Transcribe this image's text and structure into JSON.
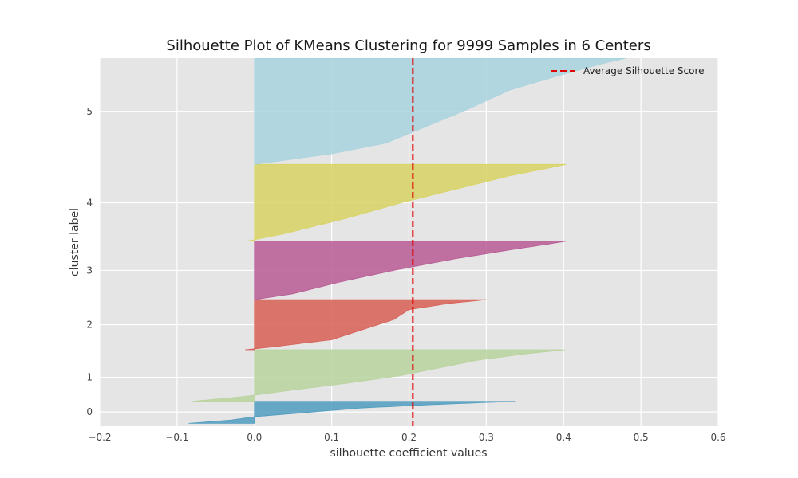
{
  "chart_data": {
    "type": "area",
    "title": "Silhouette Plot of KMeans Clustering for 9999 Samples in 6 Centers",
    "xlabel": "silhouette coefficient values",
    "ylabel": "cluster label",
    "xlim": [
      -0.2,
      0.6
    ],
    "ylim": [
      -70,
      10135
    ],
    "xticks": [
      -0.2,
      -0.1,
      0.0,
      0.1,
      0.2,
      0.3,
      0.4,
      0.5,
      0.6
    ],
    "xtick_labels": [
      "−0.2",
      "−0.1",
      "0.0",
      "0.1",
      "0.2",
      "0.3",
      "0.4",
      "0.5",
      "0.6"
    ],
    "grid": true,
    "legend_position": "top-right",
    "average_silhouette_score": 0.205,
    "average_label": "Average Silhouette Score",
    "average_color": "#e00000",
    "clusters": [
      {
        "label": "0",
        "color": "#4f9cbf",
        "y_start": 10,
        "y_end": 620,
        "label_y": 325,
        "profile": [
          [
            0,
            -0.085
          ],
          [
            0.15,
            -0.03
          ],
          [
            0.3,
            0.0
          ],
          [
            0.5,
            0.07
          ],
          [
            0.7,
            0.14
          ],
          [
            0.85,
            0.23
          ],
          [
            0.95,
            0.3
          ],
          [
            1,
            0.337
          ]
        ]
      },
      {
        "label": "1",
        "color": "#b9d39e",
        "y_start": 620,
        "y_end": 2050,
        "label_y": 1285,
        "profile": [
          [
            0,
            -0.08
          ],
          [
            0.1,
            -0.01
          ],
          [
            0.2,
            0.04
          ],
          [
            0.35,
            0.12
          ],
          [
            0.5,
            0.19
          ],
          [
            0.65,
            0.24
          ],
          [
            0.8,
            0.29
          ],
          [
            0.92,
            0.35
          ],
          [
            1,
            0.402
          ]
        ]
      },
      {
        "label": "2",
        "color": "#d85f55",
        "y_start": 2050,
        "y_end": 3440,
        "label_y": 2745,
        "profile": [
          [
            0,
            -0.012
          ],
          [
            0.05,
            0.02
          ],
          [
            0.2,
            0.1
          ],
          [
            0.4,
            0.14
          ],
          [
            0.6,
            0.18
          ],
          [
            0.8,
            0.2
          ],
          [
            0.92,
            0.25
          ],
          [
            1,
            0.3
          ]
        ]
      },
      {
        "label": "3",
        "color": "#b85a94",
        "y_start": 3440,
        "y_end": 5060,
        "label_y": 4250,
        "profile": [
          [
            0,
            0.0
          ],
          [
            0.1,
            0.05
          ],
          [
            0.3,
            0.11
          ],
          [
            0.5,
            0.18
          ],
          [
            0.7,
            0.26
          ],
          [
            0.85,
            0.33
          ],
          [
            0.95,
            0.38
          ],
          [
            1,
            0.403
          ]
        ]
      },
      {
        "label": "4",
        "color": "#d8d464",
        "y_start": 5060,
        "y_end": 7190,
        "label_y": 6125,
        "profile": [
          [
            0,
            -0.01
          ],
          [
            0.1,
            0.04
          ],
          [
            0.3,
            0.12
          ],
          [
            0.5,
            0.19
          ],
          [
            0.7,
            0.27
          ],
          [
            0.85,
            0.33
          ],
          [
            0.95,
            0.38
          ],
          [
            1,
            0.403
          ]
        ]
      },
      {
        "label": "5",
        "color": "#a9d4df",
        "y_start": 7190,
        "y_end": 10130,
        "label_y": 8660,
        "profile": [
          [
            0,
            0.0
          ],
          [
            0.1,
            0.1
          ],
          [
            0.2,
            0.17
          ],
          [
            0.35,
            0.22
          ],
          [
            0.5,
            0.27
          ],
          [
            0.7,
            0.33
          ],
          [
            0.85,
            0.4
          ],
          [
            0.95,
            0.45
          ],
          [
            1,
            0.48
          ]
        ]
      }
    ]
  }
}
